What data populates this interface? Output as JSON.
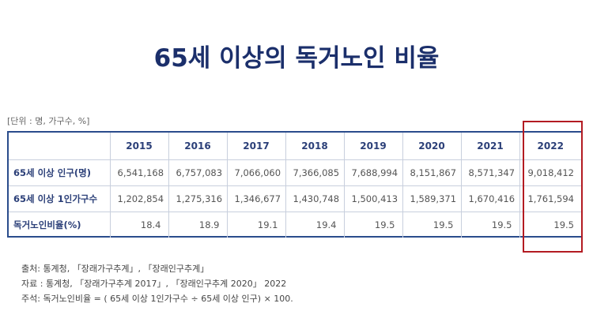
{
  "title": "65세 이상의 독거노인 비율",
  "unit_note": "[단위 : 명, 가구수, %]",
  "chart_data": {
    "type": "table",
    "title": "65세 이상의 독거노인 비율",
    "columns": [
      "2015",
      "2016",
      "2017",
      "2018",
      "2019",
      "2020",
      "2021",
      "2022"
    ],
    "rows": [
      {
        "label": "65세 이상 인구(명)",
        "values": [
          "6,541,168",
          "6,757,083",
          "7,066,060",
          "7,366,085",
          "7,688,994",
          "8,151,867",
          "8,571,347",
          "9,018,412"
        ]
      },
      {
        "label": "65세 이상 1인가구수",
        "values": [
          "1,202,854",
          "1,275,316",
          "1,346,677",
          "1,430,748",
          "1,500,413",
          "1,589,371",
          "1,670,416",
          "1,761,594"
        ]
      },
      {
        "label": "독거노인비율(%)",
        "values": [
          "18.4",
          "18.9",
          "19.1",
          "19.4",
          "19.5",
          "19.5",
          "19.5",
          "19.5"
        ]
      }
    ],
    "highlighted_column": "2022",
    "highlight_color": "#b31b22"
  },
  "notes": {
    "source": "출처: 통계청, 「장래가구추계」, 「장래인구추계」",
    "data": "자료 : 통계청, 「장래가구추계 2017」, 「장래인구추계 2020」 2022",
    "annotation": "주석: 독거노인비율 = ( 65세 이상 1인가구수 ÷ 65세 이상 인구) × 100."
  },
  "colors": {
    "title": "#1b2f6b",
    "header_text": "#2b3f78",
    "table_border": "#2a4c8c",
    "highlight": "#b31b22"
  }
}
